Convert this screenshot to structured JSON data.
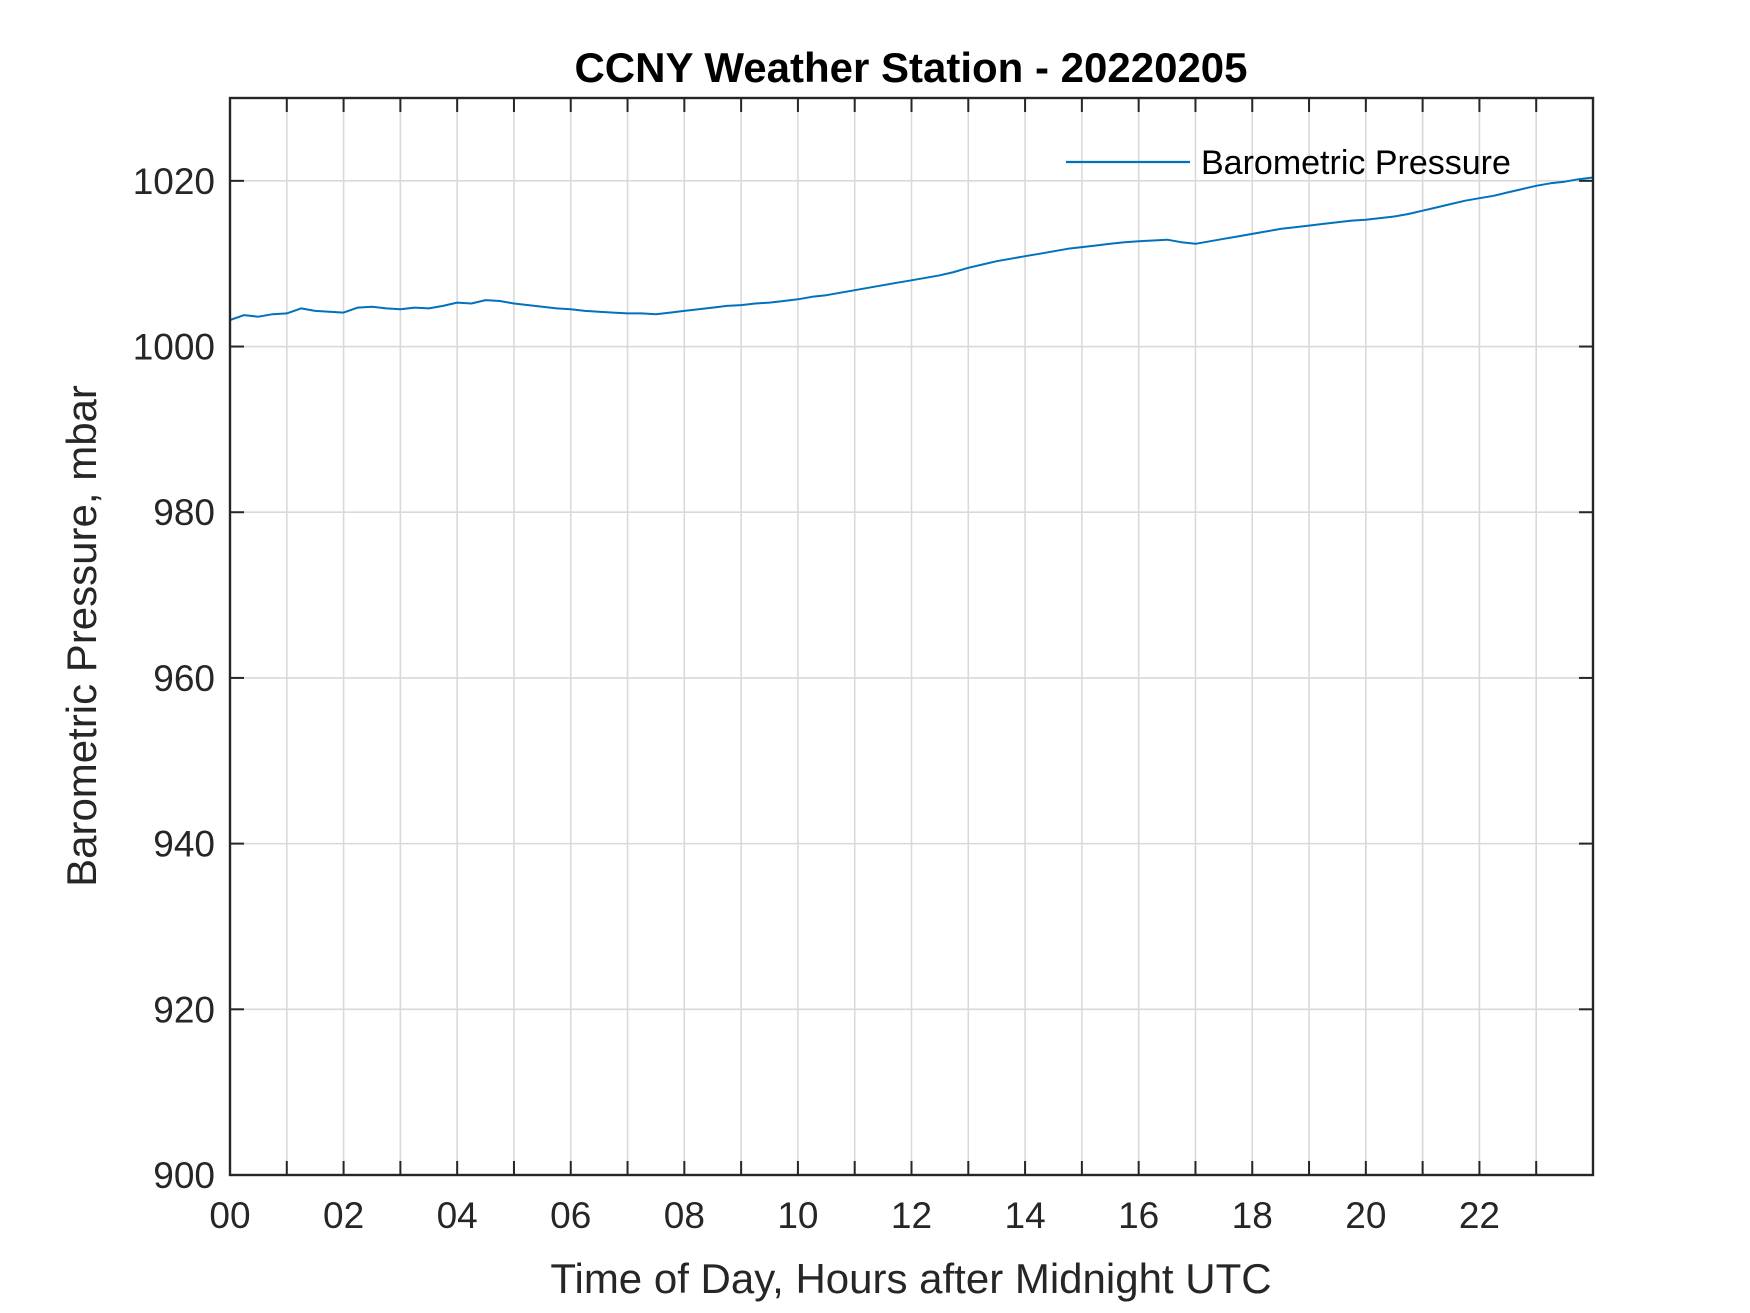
{
  "chart_data": {
    "type": "line",
    "title": "CCNY Weather Station - 20220205",
    "xlabel": "Time of Day, Hours after Midnight UTC",
    "ylabel": "Barometric Pressure, mbar",
    "xlim": [
      0,
      24
    ],
    "ylim": [
      900,
      1030
    ],
    "xticks": [
      0,
      2,
      4,
      6,
      8,
      10,
      12,
      14,
      16,
      18,
      20,
      22
    ],
    "xtick_labels": [
      "00",
      "02",
      "04",
      "06",
      "08",
      "10",
      "12",
      "14",
      "16",
      "18",
      "20",
      "22"
    ],
    "yticks": [
      900,
      920,
      940,
      960,
      980,
      1000,
      1020
    ],
    "ytick_labels": [
      "900",
      "920",
      "940",
      "960",
      "980",
      "1000",
      "1020"
    ],
    "grid": true,
    "legend_position": "top-right",
    "series": [
      {
        "name": "Barometric Pressure",
        "color": "#0072BD",
        "x": [
          0,
          0.25,
          0.5,
          0.75,
          1,
          1.25,
          1.5,
          1.75,
          2,
          2.25,
          2.5,
          2.75,
          3,
          3.25,
          3.5,
          3.75,
          4,
          4.25,
          4.5,
          4.75,
          5,
          5.25,
          5.5,
          5.75,
          6,
          6.25,
          6.5,
          6.75,
          7,
          7.25,
          7.5,
          7.75,
          8,
          8.25,
          8.5,
          8.75,
          9,
          9.25,
          9.5,
          9.75,
          10,
          10.25,
          10.5,
          10.75,
          11,
          11.25,
          11.5,
          11.75,
          12,
          12.25,
          12.5,
          12.75,
          13,
          13.25,
          13.5,
          13.75,
          14,
          14.25,
          14.5,
          14.75,
          15,
          15.25,
          15.5,
          15.75,
          16,
          16.25,
          16.5,
          16.75,
          17,
          17.25,
          17.5,
          17.75,
          18,
          18.25,
          18.5,
          18.75,
          19,
          19.25,
          19.5,
          19.75,
          20,
          20.25,
          20.5,
          20.75,
          21,
          21.25,
          21.5,
          21.75,
          22,
          22.25,
          22.5,
          22.75,
          23,
          23.25,
          23.5,
          23.75,
          24
        ],
        "values": [
          1003.2,
          1003.8,
          1003.6,
          1003.9,
          1004.0,
          1004.6,
          1004.3,
          1004.2,
          1004.1,
          1004.7,
          1004.8,
          1004.6,
          1004.5,
          1004.7,
          1004.6,
          1004.9,
          1005.3,
          1005.2,
          1005.6,
          1005.5,
          1005.2,
          1005.0,
          1004.8,
          1004.6,
          1004.5,
          1004.3,
          1004.2,
          1004.1,
          1004.0,
          1004.0,
          1003.9,
          1004.1,
          1004.3,
          1004.5,
          1004.7,
          1004.9,
          1005.0,
          1005.2,
          1005.3,
          1005.5,
          1005.7,
          1006.0,
          1006.2,
          1006.5,
          1006.8,
          1007.1,
          1007.4,
          1007.7,
          1008.0,
          1008.3,
          1008.6,
          1009.0,
          1009.5,
          1009.9,
          1010.3,
          1010.6,
          1010.9,
          1011.2,
          1011.5,
          1011.8,
          1012.0,
          1012.2,
          1012.4,
          1012.6,
          1012.7,
          1012.8,
          1012.9,
          1012.6,
          1012.4,
          1012.7,
          1013.0,
          1013.3,
          1013.6,
          1013.9,
          1014.2,
          1014.4,
          1014.6,
          1014.8,
          1015.0,
          1015.2,
          1015.3,
          1015.5,
          1015.7,
          1016.0,
          1016.4,
          1016.8,
          1017.2,
          1017.6,
          1017.9,
          1018.2,
          1018.6,
          1019.0,
          1019.4,
          1019.7,
          1019.9,
          1020.2,
          1020.4
        ]
      }
    ]
  }
}
